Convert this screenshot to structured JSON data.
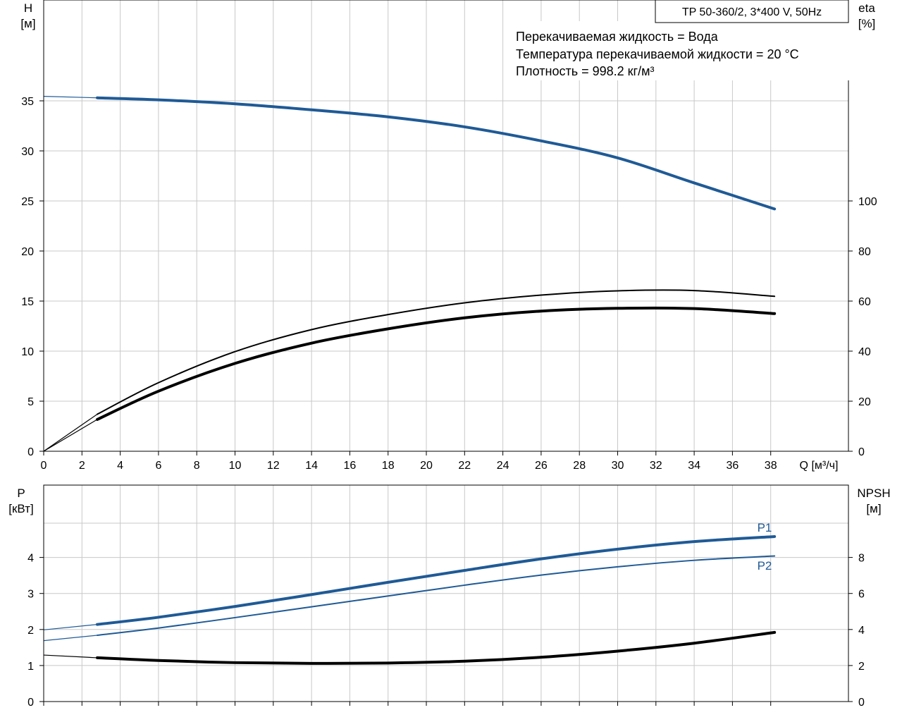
{
  "chart_data": [
    {
      "type": "line",
      "title": "TP 50-360/2, 3*400 V, 50Hz",
      "info_lines": [
        "Перекачиваемая жидкость = Вода",
        "Температура перекачиваемой жидкости = 20 °C",
        "Плотность = 998.2 кг/м³"
      ],
      "xlabel": "Q [м³/ч]",
      "ylabel_left": [
        "H",
        "[м]"
      ],
      "ylabel_right": [
        "eta",
        "[%]"
      ],
      "xlim": [
        0,
        40
      ],
      "ylim_left": [
        0,
        35
      ],
      "ylim_right": [
        0,
        100
      ],
      "x_ticks": [
        0,
        2,
        4,
        6,
        8,
        10,
        12,
        14,
        16,
        18,
        20,
        22,
        24,
        26,
        28,
        30,
        32,
        34,
        36,
        38
      ],
      "y_ticks_left": [
        0,
        5,
        10,
        15,
        20,
        25,
        30,
        35
      ],
      "y_ticks_right": [
        0,
        20,
        40,
        60,
        80,
        100
      ],
      "grid": true,
      "series": [
        {
          "axis": "left",
          "color": "#1f5a96",
          "x": [
            2.8,
            6,
            10,
            14,
            18,
            22,
            26,
            30,
            34,
            38.2
          ],
          "y": [
            35.3,
            35.1,
            34.7,
            34.1,
            33.4,
            32.4,
            31.0,
            29.3,
            26.8,
            24.2
          ]
        },
        {
          "axis": "right",
          "color": "#000000",
          "x": [
            2.8,
            6,
            10,
            14,
            18,
            22,
            26,
            30,
            34,
            38.2
          ],
          "y": [
            14.8,
            27.4,
            39.8,
            48.6,
            54.6,
            59.3,
            62.4,
            64.1,
            64.2,
            61.9
          ]
        },
        {
          "axis": "right",
          "color": "#000000",
          "x": [
            2.8,
            6,
            10,
            14,
            18,
            22,
            26,
            30,
            34,
            38.2
          ],
          "y": [
            12.7,
            24.0,
            35.1,
            43.2,
            48.9,
            53.3,
            56.0,
            57.1,
            57.0,
            55.0
          ]
        }
      ]
    },
    {
      "type": "line",
      "xlim": [
        0,
        40
      ],
      "ylabel_left": [
        "P",
        "[кВт]"
      ],
      "ylabel_right": [
        "NPSH",
        "[м]"
      ],
      "ylim_left": [
        0,
        5
      ],
      "ylim_right": [
        0,
        10
      ],
      "y_ticks_left": [
        0,
        1,
        2,
        3,
        4
      ],
      "y_ticks_right": [
        0,
        2,
        4,
        6,
        8
      ],
      "grid": true,
      "series": [
        {
          "name": "P1",
          "axis": "left",
          "color": "#1f5a96",
          "x": [
            2.8,
            6,
            10,
            14,
            18,
            22,
            26,
            30,
            34,
            38.2
          ],
          "y": [
            2.14,
            2.34,
            2.64,
            2.97,
            3.31,
            3.64,
            3.96,
            4.23,
            4.44,
            4.58
          ]
        },
        {
          "name": "P2",
          "axis": "left",
          "color": "#1f5a96",
          "x": [
            2.8,
            6,
            10,
            14,
            18,
            22,
            26,
            30,
            34,
            38.2
          ],
          "y": [
            1.84,
            2.04,
            2.33,
            2.63,
            2.93,
            3.23,
            3.51,
            3.74,
            3.92,
            4.04
          ]
        },
        {
          "axis": "right",
          "color": "#000000",
          "x": [
            2.8,
            6,
            10,
            14,
            18,
            22,
            26,
            30,
            34,
            38.2
          ],
          "y": [
            2.43,
            2.28,
            2.16,
            2.12,
            2.14,
            2.24,
            2.46,
            2.8,
            3.24,
            3.84
          ]
        }
      ]
    }
  ]
}
